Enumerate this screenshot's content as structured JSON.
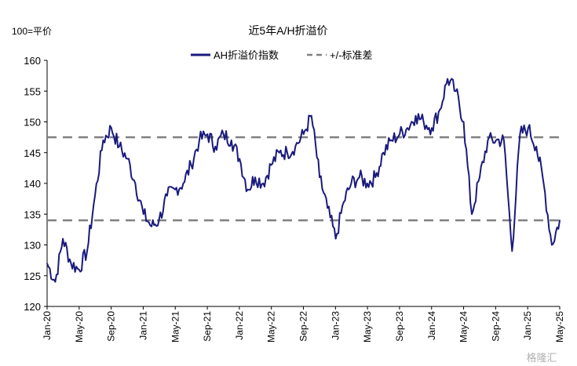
{
  "chart_data": {
    "type": "line",
    "title": "近5年A/H折溢价",
    "ylabel": "100=平价",
    "xlabel": "",
    "ylim": [
      120,
      160
    ],
    "yticks": [
      120,
      125,
      130,
      135,
      140,
      145,
      150,
      155,
      160
    ],
    "x_tick_labels": [
      "Jan-20",
      "May-20",
      "Sep-20",
      "Jan-21",
      "May-21",
      "Sep-21",
      "Jan-22",
      "May-22",
      "Sep-22",
      "Jan-23",
      "May-23",
      "Sep-23",
      "Jan-24",
      "May-24",
      "Sep-24",
      "Jan-25",
      "May-25"
    ],
    "legend_position": "top",
    "grid": false,
    "series": [
      {
        "name": "AH折溢价指数",
        "color": "#1a1a7e",
        "style": "solid",
        "x": [
          "2020-01",
          "2020-02",
          "2020-03",
          "2020-04",
          "2020-05",
          "2020-06",
          "2020-07",
          "2020-08",
          "2020-09",
          "2020-10",
          "2020-11",
          "2020-12",
          "2021-01",
          "2021-02",
          "2021-03",
          "2021-04",
          "2021-05",
          "2021-06",
          "2021-07",
          "2021-08",
          "2021-09",
          "2021-10",
          "2021-11",
          "2021-12",
          "2022-01",
          "2022-02",
          "2022-03",
          "2022-04",
          "2022-05",
          "2022-06",
          "2022-07",
          "2022-08",
          "2022-09",
          "2022-10",
          "2022-11",
          "2022-12",
          "2023-01",
          "2023-02",
          "2023-03",
          "2023-04",
          "2023-05",
          "2023-06",
          "2023-07",
          "2023-08",
          "2023-09",
          "2023-10",
          "2023-11",
          "2023-12",
          "2024-01",
          "2024-02",
          "2024-03",
          "2024-04",
          "2024-05",
          "2024-06",
          "2024-07",
          "2024-08",
          "2024-09",
          "2024-10",
          "2024-11",
          "2024-12",
          "2025-01",
          "2025-02",
          "2025-03",
          "2025-04",
          "2025-05"
        ],
        "values": [
          127,
          124,
          131,
          127,
          126,
          129,
          138,
          147,
          149,
          146,
          144,
          140,
          135,
          133,
          134,
          138,
          139,
          140,
          143,
          147,
          148,
          146,
          148,
          147,
          144,
          139,
          141,
          140,
          143,
          145,
          145,
          146,
          148,
          151,
          141,
          136,
          131,
          137,
          140,
          141,
          140,
          141,
          145,
          147,
          148,
          149,
          151,
          150,
          149,
          152,
          157,
          155,
          150,
          135,
          141,
          147,
          147,
          147,
          129,
          148,
          149,
          146,
          140,
          130,
          134
        ]
      },
      {
        "name": "+/-标准差",
        "color": "#808080",
        "style": "dashed",
        "upper": 147.5,
        "lower": 134
      }
    ]
  },
  "watermark": "格隆汇"
}
